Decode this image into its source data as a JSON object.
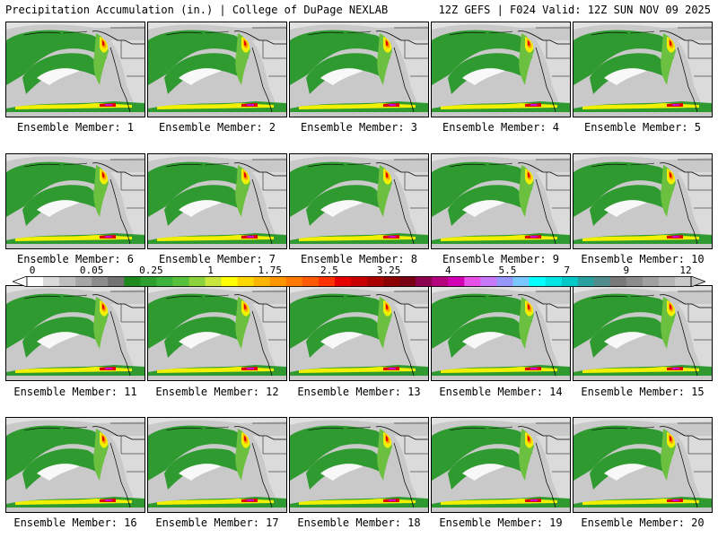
{
  "header": {
    "left": "Precipitation Accumulation (in.) | College of DuPage NEXLAB",
    "right": "12Z GEFS | F024 Valid: 12Z SUN NOV 09 2025"
  },
  "member_label_prefix": "Ensemble Member: ",
  "members": [
    1,
    2,
    3,
    4,
    5,
    6,
    7,
    8,
    9,
    10,
    11,
    12,
    13,
    14,
    15,
    16,
    17,
    18,
    19,
    20
  ],
  "colorbar": {
    "tick_labels": [
      "0",
      "0.05",
      "0.25",
      "1",
      "1.75",
      "2.5",
      "3.25",
      "4",
      "5.5",
      "7",
      "9",
      "12"
    ],
    "colors": [
      "#ffffff",
      "#d9d9d9",
      "#bfbfbf",
      "#a6a6a6",
      "#8c8c8c",
      "#737373",
      "#1e8a1e",
      "#2e9e2e",
      "#3cb43c",
      "#58c03a",
      "#8cd23c",
      "#c8e63c",
      "#ffff00",
      "#ffd700",
      "#ffb400",
      "#ff9600",
      "#ff7800",
      "#ff5a00",
      "#ff3200",
      "#e60000",
      "#c80000",
      "#aa0000",
      "#8c0000",
      "#780014",
      "#8c0050",
      "#b4007d",
      "#d200b4",
      "#e650e6",
      "#c878ff",
      "#9696ff",
      "#78c8ff",
      "#00ffff",
      "#00e6e6",
      "#00c8c8",
      "#28a0a0",
      "#508c8c",
      "#787878",
      "#8c8c8c",
      "#a0a0a0",
      "#b4b4b4",
      "#c8c8c8"
    ]
  },
  "map_colors": {
    "background_gray": "#c9c9c9",
    "light_gray": "#e2e2e2",
    "white": "#f8f8f8",
    "green": "#2f9a2f",
    "light_green": "#6cc040",
    "yellow": "#f0f000",
    "orange": "#ffa000",
    "red": "#e00000",
    "magenta": "#d000d0",
    "borders": "#000000"
  }
}
